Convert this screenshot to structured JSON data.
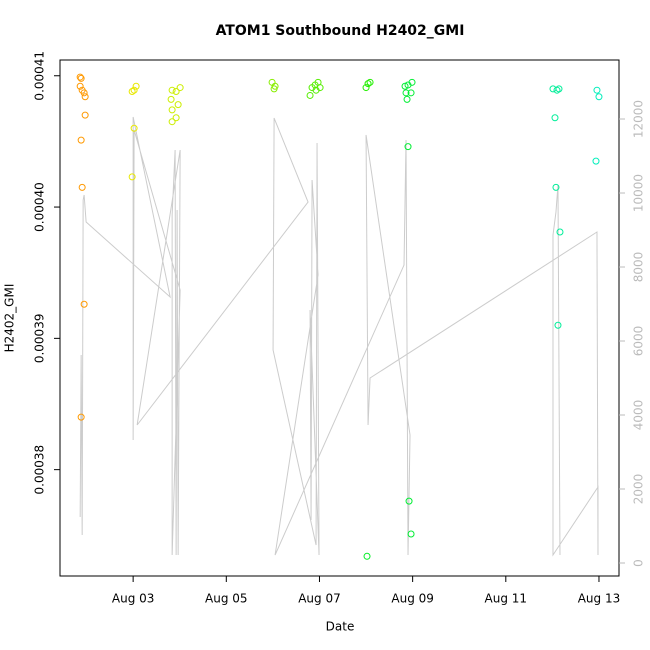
{
  "chart_data": {
    "type": "scatter",
    "title": "ATOM1 Southbound H2402_GMI",
    "x_label": "Date",
    "y_label": "H2402_GMI",
    "xlim": [
      1.43,
      13.43
    ],
    "xticks": [
      {
        "value": 3,
        "label": "Aug 03"
      },
      {
        "value": 5,
        "label": "Aug 05"
      },
      {
        "value": 7,
        "label": "Aug 07"
      },
      {
        "value": 9,
        "label": "Aug 09"
      },
      {
        "value": 11,
        "label": "Aug 11"
      },
      {
        "value": 13,
        "label": "Aug 13"
      }
    ],
    "ylim": [
      0.0003719,
      0.0004112
    ],
    "yticks": [
      0.00038,
      0.00039,
      {
        "value": 0.0004,
        "label": "0.00040"
      },
      0.00041
    ],
    "y2lim": [
      -351,
      13595
    ],
    "y2ticks": [
      0,
      2000,
      4000,
      6000,
      8000,
      10000,
      12000
    ],
    "series": [
      {
        "type": "scatter",
        "color": "#ff9900",
        "x": [
          1.863,
          1.884,
          1.863,
          1.906,
          1.948,
          1.97,
          1.97,
          1.884,
          1.906,
          1.948,
          1.884
        ],
        "values": [
          0.0004099,
          0.0004098,
          0.0004092,
          0.0004089,
          0.0004087,
          0.0004084,
          0.000407,
          0.0004051,
          0.0004015,
          0.0003926,
          0.000384
        ]
      },
      {
        "type": "scatter",
        "color": "#e8e800",
        "x": [
          2.979,
          3.021,
          3.064,
          3.021,
          2.979
        ],
        "values": [
          0.0004088,
          0.0004089,
          0.0004092,
          0.000406,
          0.0004023
        ]
      },
      {
        "type": "scatter",
        "color": "#ccee00",
        "x": [
          3.837,
          3.923,
          4.009,
          3.815,
          3.966,
          3.837,
          3.923,
          3.837
        ],
        "values": [
          0.0004089,
          0.0004088,
          0.0004091,
          0.0004082,
          0.0004078,
          0.0004074,
          0.0004068,
          0.0004065
        ]
      },
      {
        "type": "scatter",
        "color": "#88ee00",
        "x": [
          5.983,
          6.047,
          6.026
        ],
        "values": [
          0.0004095,
          0.0004092,
          0.000409
        ]
      },
      {
        "type": "scatter",
        "color": "#55ee00",
        "x": [
          6.798,
          6.841,
          6.906,
          6.97,
          7.013,
          6.927
        ],
        "values": [
          0.0004085,
          0.0004091,
          0.0004093,
          0.0004095,
          0.0004091,
          0.0004089
        ]
      },
      {
        "type": "scatter",
        "color": "#22ee00",
        "x": [
          8.0,
          8.043,
          8.086
        ],
        "values": [
          0.0004091,
          0.0004094,
          0.0004095
        ]
      },
      {
        "type": "scatter",
        "color": "#00ee22",
        "x": [
          8.021
        ],
        "values": [
          0.0003734
        ]
      },
      {
        "type": "scatter",
        "color": "#00ee33",
        "x": [
          8.837,
          8.901,
          8.987,
          8.858,
          8.966,
          8.88,
          8.901,
          8.923,
          8.966
        ],
        "values": [
          0.0004092,
          0.0004093,
          0.0004095,
          0.0004087,
          0.0004087,
          0.0004082,
          0.0004046,
          0.0003776,
          0.0003751
        ]
      },
      {
        "type": "scatter",
        "color": "#00ee99",
        "x": [
          12.013,
          12.099,
          12.142,
          12.056,
          12.077,
          12.163,
          12.12
        ],
        "values": [
          0.000409,
          0.0004089,
          0.000409,
          0.0004068,
          0.0004015,
          0.0003981,
          0.000391
        ]
      },
      {
        "type": "scatter",
        "color": "#00eebb",
        "x": [
          12.957,
          13.0,
          12.936
        ],
        "values": [
          0.0004089,
          0.0004084,
          0.0004035
        ]
      },
      {
        "type": "line",
        "axis": "y2",
        "color": "#cccccc",
        "x": [
          1.863,
          1.884,
          1.906,
          1.927,
          1.948,
          1.991,
          3.794,
          3.0,
          3.0,
          3.021,
          4.009,
          3.837,
          3.837,
          3.901,
          3.923,
          3.944,
          3.966,
          4.009,
          3.086,
          6.755,
          6.026,
          6.004,
          6.927,
          6.948,
          6.991,
          6.798,
          6.82,
          6.841,
          6.97,
          6.047,
          8.815,
          8.858,
          8.901,
          8.944,
          8.0,
          8.043,
          8.086,
          12.957,
          12.979,
          12.979,
          12.013,
          12.013,
          12.077,
          12.12,
          12.163
        ],
        "values": [
          1243,
          5622,
          757,
          9811,
          9946,
          9216,
          7189,
          12054,
          3324,
          11703,
          7378,
          216,
          9405,
          11162,
          216,
          9540,
          216,
          11162,
          3730,
          9757,
          12027,
          5757,
          487,
          11351,
          216,
          6838,
          1162,
          10351,
          7784,
          216,
          8054,
          11432,
          216,
          3459,
          11568,
          3730,
          5000,
          8946,
          216,
          2054,
          216,
          8865,
          9486,
          10216,
          216
        ]
      }
    ]
  }
}
